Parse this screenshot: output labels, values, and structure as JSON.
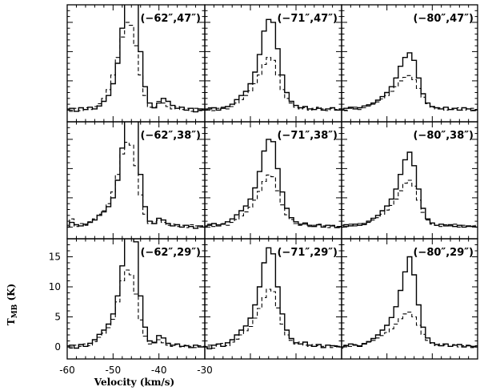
{
  "chart_data": {
    "type": "line",
    "layout": "3x3 grid of spectra",
    "xlabel": "Velocity (km/s)",
    "ylabel": "T_MB (K)",
    "xlim": [
      -60,
      -30
    ],
    "ylim": [
      -2,
      18
    ],
    "x_ticks": [
      "-60",
      "-50",
      "-40",
      "-30"
    ],
    "y_ticks": [
      "0",
      "5",
      "10",
      "15"
    ],
    "grid": false,
    "x": [
      -60,
      -59,
      -58,
      -57,
      -56,
      -55,
      -54,
      -53,
      -52,
      -51,
      -50,
      -49,
      -48,
      -47,
      -46,
      -45,
      -44,
      -43,
      -42,
      -41,
      -40,
      -39,
      -38,
      -37,
      -36,
      -35,
      -34,
      -33,
      -32,
      -31,
      -30
    ],
    "panels": [
      {
        "label": "(−62″,47″)",
        "solid": [
          0,
          0.3,
          -0.2,
          0.4,
          0.1,
          0.5,
          0.2,
          0.7,
          1.5,
          2.5,
          4.5,
          8,
          14,
          20,
          22,
          20,
          10,
          4,
          1.2,
          0.4,
          1.2,
          2,
          1.5,
          0.8,
          0.3,
          0.5,
          0,
          0.3,
          -0.3,
          0.2,
          0
        ],
        "dashed": [
          0.2,
          -0.2,
          0.3,
          -0.1,
          0.4,
          0.1,
          0.6,
          1.1,
          2,
          3.5,
          6,
          9,
          12.5,
          15,
          14.5,
          11,
          6,
          2.5,
          0.5,
          0.6,
          1.5,
          1.2,
          0.6,
          0.2,
          0.6,
          0.1,
          0.3,
          -0.2,
          0.3,
          -0.1,
          0.2
        ]
      },
      {
        "label": "(−71″,47″)",
        "solid": [
          0,
          0.2,
          0.4,
          0,
          0.3,
          0.6,
          1,
          1.8,
          2.5,
          3.2,
          4.5,
          6.5,
          9.5,
          13.5,
          15.5,
          15,
          10.5,
          6,
          3,
          1.5,
          0.8,
          0.4,
          0.6,
          0.2,
          0.1,
          0.3,
          0,
          0.2,
          0.4,
          0,
          0.2
        ],
        "dashed": [
          0.2,
          0.4,
          -0.1,
          0.3,
          0.5,
          0.2,
          0.6,
          1.2,
          1.8,
          2.5,
          3.3,
          4.5,
          6,
          7.8,
          9,
          8.5,
          6,
          3.5,
          2,
          1.2,
          0.5,
          0.2,
          0.4,
          0,
          0.3,
          0.5,
          0.2,
          -0.1,
          0.3,
          0.1,
          0
        ]
      },
      {
        "label": "(−80″,47″)",
        "solid": [
          0,
          0.3,
          0.5,
          0.2,
          0.4,
          0.7,
          0.9,
          1.2,
          1.7,
          2.3,
          3,
          4,
          5.5,
          7.5,
          9,
          9.8,
          8.5,
          5.5,
          2.8,
          1.2,
          0.6,
          0.4,
          0.2,
          0.5,
          0.1,
          0.3,
          0,
          0.4,
          0.2,
          -0.1,
          0.1
        ],
        "dashed": [
          0.2,
          -0.1,
          0.3,
          0.5,
          0.1,
          0.4,
          0.7,
          1,
          1.4,
          1.9,
          2.5,
          3.2,
          4,
          5,
          5.6,
          5.9,
          5.2,
          3.7,
          2.2,
          1.1,
          0.5,
          0.2,
          0.4,
          0,
          0.3,
          0.1,
          0.4,
          0,
          0.2,
          0.3,
          0
        ]
      },
      {
        "label": "(−62″,38″)",
        "solid": [
          0,
          0.8,
          0.4,
          0.2,
          0.5,
          0.8,
          1.2,
          2,
          2.6,
          3.5,
          5,
          8,
          13.5,
          20,
          23,
          19,
          9,
          3.5,
          1,
          0.6,
          1.5,
          1.2,
          0.6,
          0.2,
          0.4,
          0,
          0.3,
          0.1,
          -0.2,
          0.2,
          0
        ],
        "dashed": [
          0.3,
          1.4,
          0.1,
          0.6,
          0.3,
          0.9,
          1.4,
          2.2,
          2.8,
          4,
          6,
          9,
          12.5,
          14.5,
          14,
          10.5,
          5.5,
          2.2,
          0.6,
          0.9,
          1.2,
          0.8,
          0.3,
          0.5,
          0.1,
          0.3,
          -0.1,
          0.4,
          0.2,
          0,
          0.2
        ]
      },
      {
        "label": "(−71″,38″)",
        "solid": [
          0,
          0.3,
          0.6,
          0.2,
          0.5,
          0.9,
          1.4,
          2.1,
          2.8,
          3.6,
          4.8,
          6.7,
          9.5,
          13,
          15,
          14.6,
          10,
          6,
          3.2,
          1.6,
          0.9,
          0.5,
          0.7,
          0.3,
          0.1,
          0.4,
          0,
          0.3,
          0.2,
          -0.1,
          0.1
        ],
        "dashed": [
          0.2,
          0.5,
          0.1,
          0.4,
          0.6,
          0.3,
          0.8,
          1.3,
          1.9,
          2.6,
          3.4,
          4.6,
          6.1,
          7.8,
          8.9,
          8.6,
          6.2,
          3.8,
          2.1,
          1.3,
          0.6,
          0.3,
          0.5,
          0.1,
          0.3,
          0.5,
          0.2,
          -0.1,
          0.3,
          0.1,
          0
        ]
      },
      {
        "label": "(−80″,38″)",
        "solid": [
          0,
          0.4,
          0.2,
          0.5,
          0.3,
          0.6,
          1,
          1.5,
          2,
          2.8,
          3.6,
          4.8,
          6.5,
          9,
          11.5,
          12.8,
          10.5,
          6.5,
          3.2,
          1.4,
          0.7,
          0.3,
          0.5,
          0.2,
          0.4,
          0.1,
          0.3,
          0,
          0.2,
          0.1,
          0
        ],
        "dashed": [
          0.3,
          0.1,
          0.5,
          0.2,
          0.6,
          0.4,
          0.8,
          1.2,
          1.6,
          2.2,
          2.9,
          3.7,
          4.8,
          6.2,
          7.5,
          8,
          7,
          4.6,
          2.5,
          1.2,
          0.5,
          0.3,
          0.1,
          0.4,
          0.2,
          0.5,
          0,
          0.3,
          0.1,
          0.2,
          0.3
        ]
      },
      {
        "label": "(−62″,29″)",
        "solid": [
          0,
          0.3,
          -0.2,
          0.4,
          0.1,
          0.6,
          1.2,
          2.1,
          2.8,
          3.8,
          5.5,
          8.5,
          13.5,
          19.5,
          21,
          17.5,
          8.5,
          3.3,
          1,
          0.7,
          1.9,
          1.5,
          0.6,
          0.3,
          0.5,
          0.1,
          0.2,
          -0.1,
          0.3,
          0,
          0
        ],
        "dashed": [
          0.2,
          -0.2,
          0.3,
          0.1,
          0.5,
          0.2,
          0.9,
          1.6,
          2.3,
          3.2,
          4.6,
          7.5,
          11,
          12.8,
          12,
          8.8,
          4.5,
          1.8,
          0.5,
          0.8,
          1.2,
          0.7,
          0.3,
          0.1,
          0.4,
          0,
          0.3,
          0.1,
          -0.1,
          0.2,
          0.1
        ]
      },
      {
        "label": "(−71″,29″)",
        "solid": [
          0,
          -0.3,
          0.3,
          0.5,
          0.1,
          0.7,
          1.2,
          2,
          2.8,
          3.5,
          4.8,
          7,
          10,
          14,
          16.5,
          15.5,
          10,
          5.5,
          2.8,
          1.4,
          0.7,
          0.5,
          0.8,
          0.3,
          0.1,
          0.4,
          -0.1,
          0.3,
          0.2,
          0.1,
          0
        ],
        "dashed": [
          0.1,
          0.3,
          -0.2,
          0.4,
          0.6,
          0.2,
          0.8,
          1.3,
          2,
          2.7,
          3.4,
          4.8,
          6.4,
          8.2,
          9.6,
          9.2,
          6.5,
          3.8,
          2,
          1.1,
          0.5,
          0.8,
          0.3,
          0.1,
          0.4,
          0.2,
          0.1,
          0.3,
          -0.1,
          0.2,
          0
        ]
      },
      {
        "label": "(−80″,29″)",
        "solid": [
          0,
          0.2,
          0.5,
          0.3,
          0.1,
          0.5,
          0.9,
          1.4,
          2,
          2.8,
          3.6,
          4.9,
          6.7,
          9.4,
          12.5,
          15,
          12,
          7,
          3.3,
          1.5,
          0.7,
          0.4,
          0.2,
          0.5,
          0.1,
          0.3,
          0.4,
          0,
          0.2,
          0.1,
          0
        ],
        "dashed": [
          -0.2,
          0.3,
          0.1,
          0.4,
          0.2,
          0.6,
          0.8,
          1.1,
          1.5,
          1.9,
          2.4,
          3,
          3.8,
          4.7,
          5.5,
          5.8,
          5,
          3.6,
          2.1,
          1.1,
          0.6,
          0.2,
          0.5,
          0.3,
          0.1,
          0.4,
          0,
          0.2,
          0.3,
          -0.1,
          0.2
        ]
      }
    ]
  }
}
